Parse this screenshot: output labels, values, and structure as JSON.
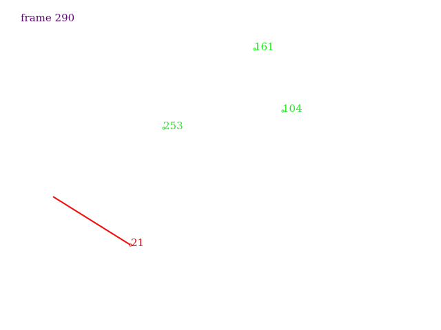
{
  "frame": {
    "label": "frame 290",
    "color": "#5a0a6e"
  },
  "colors": {
    "tracked": "#22ee22",
    "selected": "#ee1111",
    "selected_text": "#cc1111"
  },
  "points": [
    {
      "id": "161",
      "status": "tracked"
    },
    {
      "id": "104",
      "status": "tracked"
    },
    {
      "id": "253",
      "status": "tracked"
    },
    {
      "id": "21",
      "status": "selected"
    }
  ]
}
